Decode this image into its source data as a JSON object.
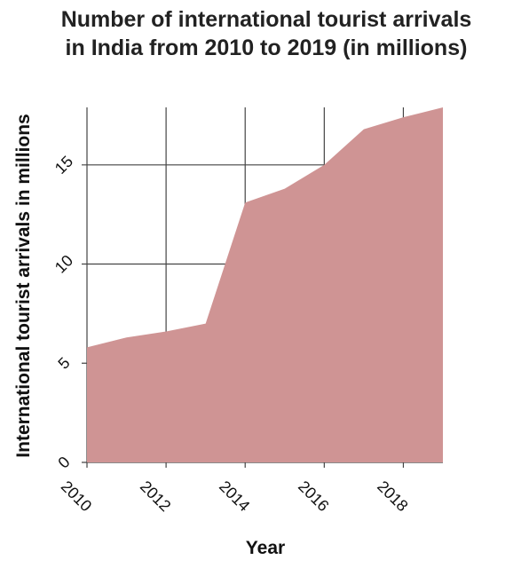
{
  "chart_data": {
    "type": "area",
    "title": "Number of international tourist arrivals in India from 2010 to 2019 (in millions)",
    "title_lines": [
      "Number of international tourist arrivals",
      "in India from 2010 to 2019 (in millions)"
    ],
    "xlabel": "Year",
    "ylabel": "International tourist arrivals in millions",
    "x": [
      2010,
      2011,
      2012,
      2013,
      2014,
      2015,
      2016,
      2017,
      2018,
      2019
    ],
    "series": [
      {
        "values": [
          5.8,
          6.3,
          6.6,
          7.0,
          13.1,
          13.8,
          15.0,
          16.8,
          17.4,
          17.9
        ],
        "color": "#cf9494"
      }
    ],
    "xticks": [
      2010,
      2012,
      2014,
      2016,
      2018
    ],
    "xtick_labels": [
      "2010",
      "2012",
      "2014",
      "2016",
      "2018"
    ],
    "yticks": [
      0,
      5,
      10,
      15
    ],
    "ytick_labels": [
      "0",
      "5",
      "10",
      "15"
    ],
    "xlim": [
      2010,
      2019
    ],
    "ylim": [
      0,
      17.9
    ],
    "grid": true,
    "colors": {
      "area": "#cf9494",
      "grid": "#444444"
    }
  }
}
